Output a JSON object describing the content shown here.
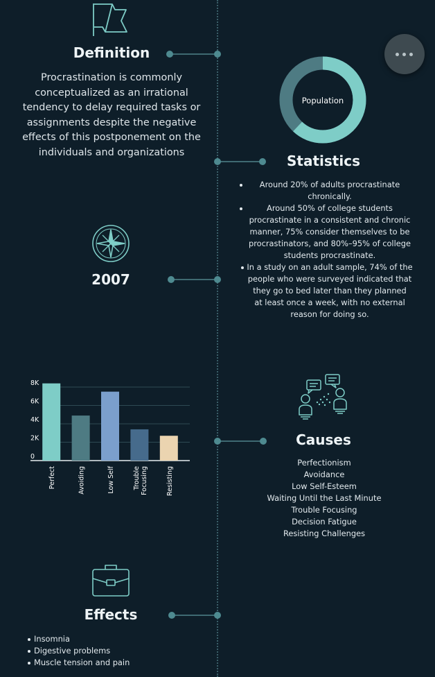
{
  "definition": {
    "title": "Definition",
    "text_lines": [
      "Procrastination is commonly",
      "conceptualized as an irrational",
      "tendency to delay required tasks or",
      "assignments despite the negative",
      "effects of this postponement on the",
      "individuals and organizations"
    ],
    "icon": "flag-icon"
  },
  "statistics": {
    "title": "Statistics",
    "donut_label": "Population",
    "donut_value_fraction": 0.62,
    "colors": {
      "primary": "#7ecdc7",
      "secondary": "#4e7b83"
    },
    "items": [
      [
        "Around 20% of adults procrastinate",
        "chronically."
      ],
      [
        "Around 50% of college students",
        "procrastinate in a consistent and chronic",
        "manner, 75% consider themselves to be",
        "procrastinators, and 80%–95% of college",
        "students procrastinate."
      ],
      [
        "In a study on an adult sample, 74% of the",
        "people who were surveyed indicated that",
        "they go to bed later than they planned",
        "at least once a week, with no external",
        "reason for doing so."
      ]
    ]
  },
  "year": {
    "label": "2007",
    "icon": "compass-icon"
  },
  "causes": {
    "title": "Causes",
    "icon": "discussion-people-icon",
    "items": [
      "Perfectionism",
      "Avoidance",
      "Low Self-Esteem",
      "Waiting Until the Last Minute",
      "Trouble Focusing",
      "Decision Fatigue",
      "Resisting Challenges"
    ]
  },
  "effects": {
    "title": "Effects",
    "icon": "briefcase-icon",
    "items": [
      "Insomnia",
      "Digestive problems",
      "Muscle tension and pain"
    ]
  },
  "menu": {
    "icon": "more-horizontal-icon"
  },
  "chart_data": {
    "type": "bar",
    "categories": [
      "Perfect",
      "Avoiding",
      "Low Self",
      "Trouble Focusing",
      "Resisting"
    ],
    "category_lines": [
      [
        "Perfect"
      ],
      [
        "Avoiding"
      ],
      [
        "Low Self"
      ],
      [
        "Trouble",
        "Focusing"
      ],
      [
        "Resisting"
      ]
    ],
    "values": [
      8400,
      4900,
      7500,
      3400,
      2700
    ],
    "colors": [
      "#7ecdc7",
      "#4e7b83",
      "#7b9fcc",
      "#466b8c",
      "#ebd4b0"
    ],
    "y_ticks": [
      "0",
      "2K",
      "4K",
      "6K",
      "8K"
    ],
    "y_tick_values": [
      0,
      2000,
      4000,
      6000,
      8000
    ],
    "ylim": [
      0,
      8000
    ],
    "grid": true,
    "title": "",
    "xlabel": "",
    "ylabel": ""
  }
}
